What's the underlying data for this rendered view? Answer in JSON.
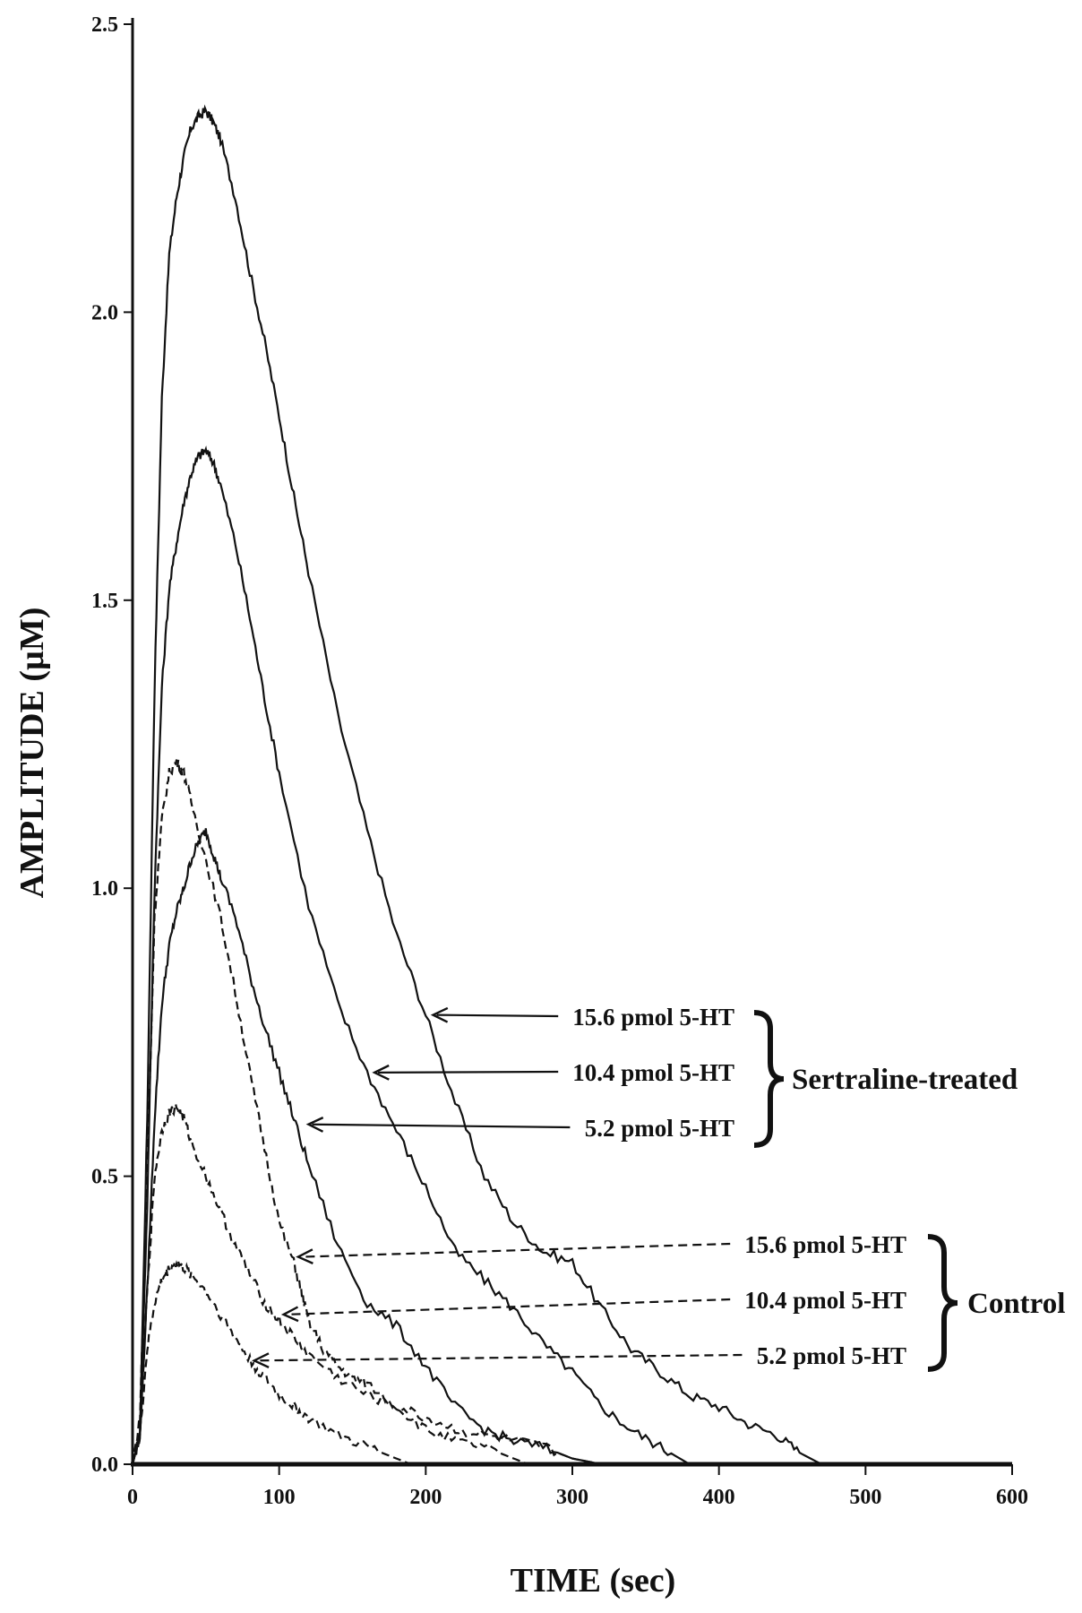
{
  "chart_data": {
    "type": "line",
    "title": "",
    "xlabel": "TIME (sec)",
    "ylabel": "AMPLITUDE (µM)",
    "xlim": [
      0,
      600
    ],
    "ylim": [
      0,
      2.5
    ],
    "x_ticks": [
      "0",
      "100",
      "200",
      "300",
      "400",
      "500",
      "600"
    ],
    "y_ticks": [
      "0.0",
      "0.5",
      "1.0",
      "1.5",
      "2.0",
      "2.5"
    ],
    "grid": false,
    "groups": [
      {
        "name": "Sertraline-treated",
        "line_style": "solid"
      },
      {
        "name": "Control",
        "line_style": "dashed"
      }
    ],
    "series": [
      {
        "name": "15.6 pmol 5-HT",
        "group": "Sertraline-treated",
        "style": "solid",
        "x": [
          0,
          5,
          10,
          15,
          20,
          25,
          30,
          35,
          40,
          45,
          50,
          55,
          60,
          70,
          80,
          90,
          100,
          110,
          120,
          140,
          160,
          180,
          200,
          220,
          240,
          260,
          280,
          300,
          320,
          340,
          360,
          380,
          400,
          420,
          440,
          455,
          470
        ],
        "y": [
          0,
          0.05,
          0.6,
          1.35,
          1.85,
          2.1,
          2.2,
          2.27,
          2.32,
          2.34,
          2.35,
          2.33,
          2.3,
          2.2,
          2.07,
          1.95,
          1.82,
          1.68,
          1.55,
          1.3,
          1.1,
          0.92,
          0.78,
          0.63,
          0.5,
          0.42,
          0.37,
          0.35,
          0.27,
          0.2,
          0.16,
          0.12,
          0.1,
          0.07,
          0.05,
          0.02,
          0
        ]
      },
      {
        "name": "10.4 pmol 5-HT",
        "group": "Sertraline-treated",
        "style": "solid",
        "x": [
          0,
          5,
          10,
          15,
          20,
          25,
          30,
          35,
          40,
          45,
          50,
          55,
          60,
          70,
          80,
          90,
          100,
          120,
          140,
          160,
          180,
          200,
          220,
          240,
          260,
          280,
          300,
          320,
          340,
          360,
          380
        ],
        "y": [
          0,
          0.05,
          0.45,
          1.0,
          1.35,
          1.52,
          1.6,
          1.67,
          1.72,
          1.75,
          1.76,
          1.74,
          1.7,
          1.6,
          1.47,
          1.33,
          1.2,
          0.97,
          0.8,
          0.68,
          0.58,
          0.48,
          0.37,
          0.32,
          0.27,
          0.21,
          0.16,
          0.1,
          0.06,
          0.03,
          0
        ]
      },
      {
        "name": "5.2 pmol 5-HT",
        "group": "Sertraline-treated",
        "style": "solid",
        "x": [
          0,
          5,
          10,
          15,
          20,
          25,
          30,
          35,
          40,
          45,
          50,
          55,
          60,
          70,
          80,
          90,
          100,
          110,
          120,
          140,
          160,
          180,
          200,
          220,
          240,
          260,
          280,
          300,
          320
        ],
        "y": [
          0,
          0.05,
          0.3,
          0.6,
          0.8,
          0.9,
          0.96,
          1.0,
          1.05,
          1.08,
          1.1,
          1.06,
          1.02,
          0.95,
          0.85,
          0.76,
          0.68,
          0.6,
          0.52,
          0.38,
          0.28,
          0.24,
          0.17,
          0.1,
          0.06,
          0.04,
          0.03,
          0.01,
          0
        ]
      },
      {
        "name": "15.6 pmol 5-HT",
        "group": "Control",
        "style": "dashed",
        "x": [
          0,
          5,
          10,
          15,
          20,
          25,
          30,
          35,
          40,
          50,
          60,
          70,
          80,
          90,
          100,
          110,
          115,
          120,
          130,
          140,
          150,
          160,
          180,
          200,
          220,
          240,
          260,
          270
        ],
        "y": [
          0,
          0.08,
          0.5,
          0.95,
          1.12,
          1.2,
          1.22,
          1.2,
          1.15,
          1.05,
          0.95,
          0.82,
          0.68,
          0.55,
          0.42,
          0.35,
          0.3,
          0.25,
          0.2,
          0.17,
          0.15,
          0.14,
          0.1,
          0.06,
          0.04,
          0.03,
          0.01,
          0
        ]
      },
      {
        "name": "10.4 pmol 5-HT",
        "group": "Control",
        "style": "dashed",
        "x": [
          0,
          5,
          10,
          15,
          20,
          25,
          30,
          35,
          40,
          50,
          60,
          70,
          80,
          90,
          100,
          110,
          120,
          140,
          160,
          180,
          200,
          220,
          240,
          260,
          280,
          300,
          320
        ],
        "y": [
          0,
          0.05,
          0.3,
          0.5,
          0.58,
          0.61,
          0.62,
          0.6,
          0.56,
          0.5,
          0.44,
          0.38,
          0.33,
          0.28,
          0.25,
          0.22,
          0.19,
          0.15,
          0.12,
          0.1,
          0.08,
          0.06,
          0.05,
          0.04,
          0.03,
          0.01,
          0
        ]
      },
      {
        "name": "5.2 pmol 5-HT",
        "group": "Control",
        "style": "dashed",
        "x": [
          0,
          5,
          10,
          15,
          20,
          25,
          30,
          35,
          40,
          50,
          60,
          70,
          80,
          90,
          100,
          110,
          120,
          140,
          160,
          180,
          190
        ],
        "y": [
          0,
          0.05,
          0.2,
          0.28,
          0.32,
          0.34,
          0.35,
          0.34,
          0.33,
          0.3,
          0.26,
          0.22,
          0.18,
          0.15,
          0.12,
          0.1,
          0.08,
          0.05,
          0.03,
          0.01,
          0
        ]
      }
    ],
    "annotations": [
      {
        "text": "15.6 pmol 5-HT",
        "group": "Sertraline-treated",
        "arrow_to": {
          "x": 205,
          "y": 0.78
        }
      },
      {
        "text": "10.4 pmol 5-HT",
        "group": "Sertraline-treated",
        "arrow_to": {
          "x": 165,
          "y": 0.68
        }
      },
      {
        "text": "5.2 pmol 5-HT",
        "group": "Sertraline-treated",
        "arrow_to": {
          "x": 120,
          "y": 0.59
        }
      },
      {
        "text": "15.6 pmol 5-HT",
        "group": "Control",
        "arrow_to": {
          "x": 113,
          "y": 0.36
        }
      },
      {
        "text": "10.4 pmol 5-HT",
        "group": "Control",
        "arrow_to": {
          "x": 103,
          "y": 0.26
        }
      },
      {
        "text": "5.2 pmol 5-HT",
        "group": "Control",
        "arrow_to": {
          "x": 83,
          "y": 0.18
        }
      }
    ]
  }
}
